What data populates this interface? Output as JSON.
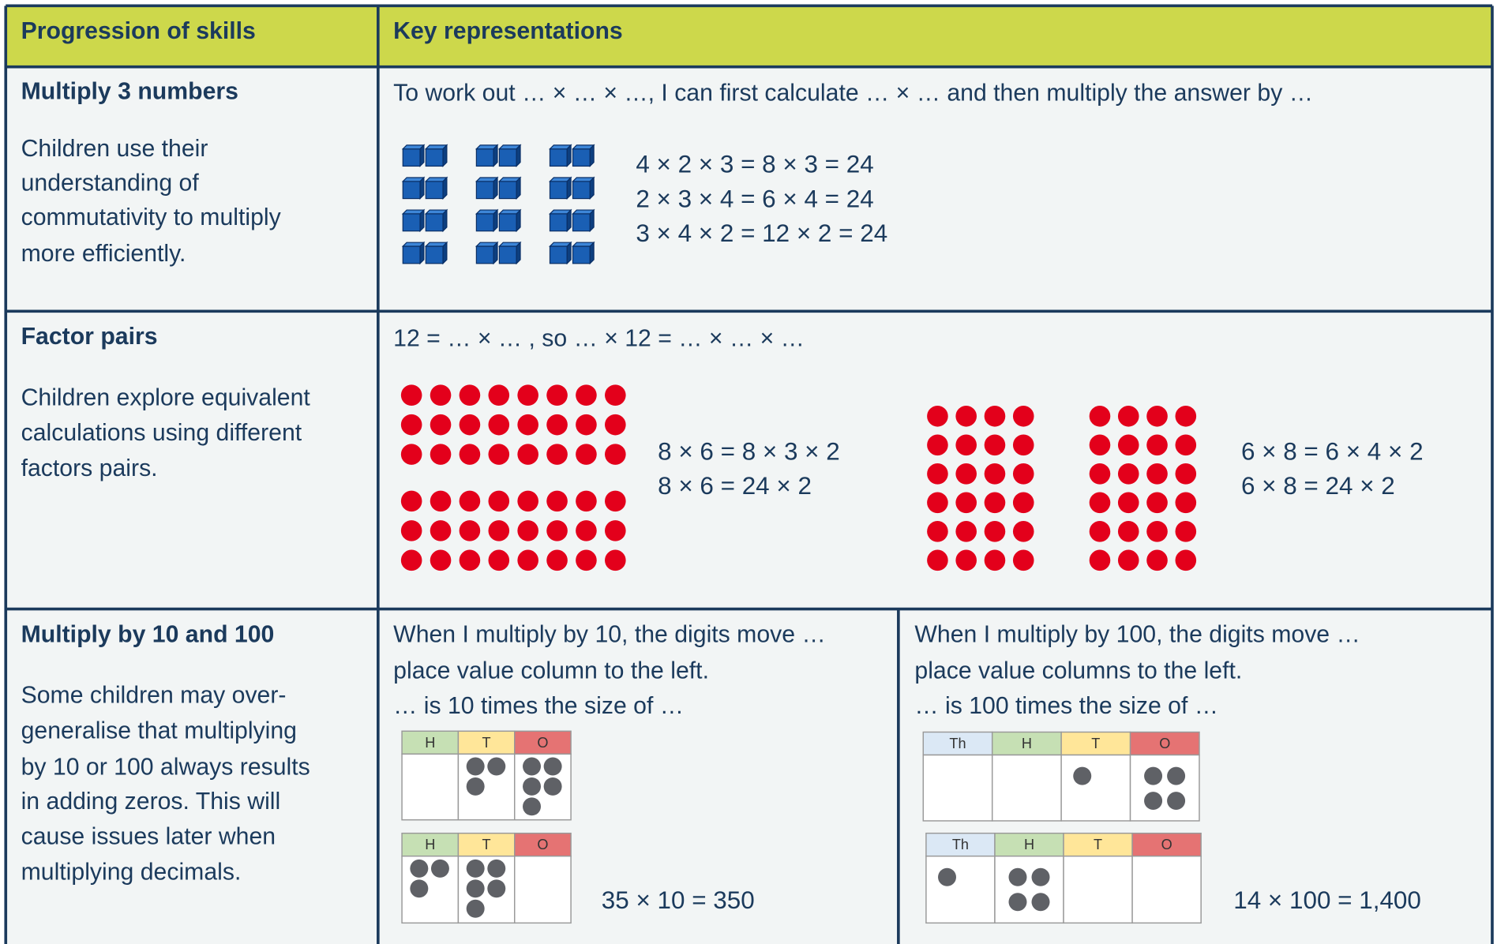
{
  "table": {
    "headers": [
      "Progression of skills",
      "Key representations"
    ],
    "rows": [
      {
        "skill": "Multiply 3 numbers",
        "description": [
          "Children use their",
          "understanding of",
          "commutativity to multiply",
          "more efficiently."
        ],
        "sentence": "To work out … ×  … ×  …, I can first calculate … × … and then multiply the answer by …",
        "equations": [
          "4 × 2 × 3 = 8 × 3 = 24",
          "2 × 3 × 4 = 6 × 4 = 24",
          "3 × 4 × 2 = 12 × 2 = 24"
        ]
      },
      {
        "skill": "Factor pairs",
        "description": [
          "Children explore equivalent",
          "calculations using different",
          "factors pairs."
        ],
        "sentence": "12 =  … ×  … , so … ×  12  =  … ×  … ×  …",
        "equations_left": [
          "8 × 6 = 8 × 3 × 2",
          "8 × 6 = 24 × 2"
        ],
        "equations_right": [
          "6 × 8 = 6 × 4 × 2",
          "6 × 8 = 24 × 2"
        ]
      },
      {
        "skill": "Multiply by 10 and 100",
        "description": [
          "Some children may over-",
          "generalise that multiplying",
          "by 10 or 100 always results",
          "in adding zeros. This will",
          "cause issues later when",
          "multiplying decimals."
        ],
        "left": {
          "sentence": [
            "When I multiply by 10, the digits move …",
            "place value column to the left.",
            "… is 10 times the size of …"
          ],
          "charts": [
            [
              "H",
              "T",
              "O"
            ],
            [
              "H",
              "T",
              "O"
            ]
          ],
          "equation": "35 × 10 = 350"
        },
        "right": {
          "sentence": [
            "When I multiply by 100, the digits move …",
            "place value columns to the left.",
            "… is 100 times the size of …"
          ],
          "charts": [
            [
              "Th",
              "H",
              "T",
              "O"
            ],
            [
              "Th",
              "H",
              "T",
              "O"
            ]
          ],
          "equation": "14 × 100 = 1,400"
        }
      }
    ]
  }
}
